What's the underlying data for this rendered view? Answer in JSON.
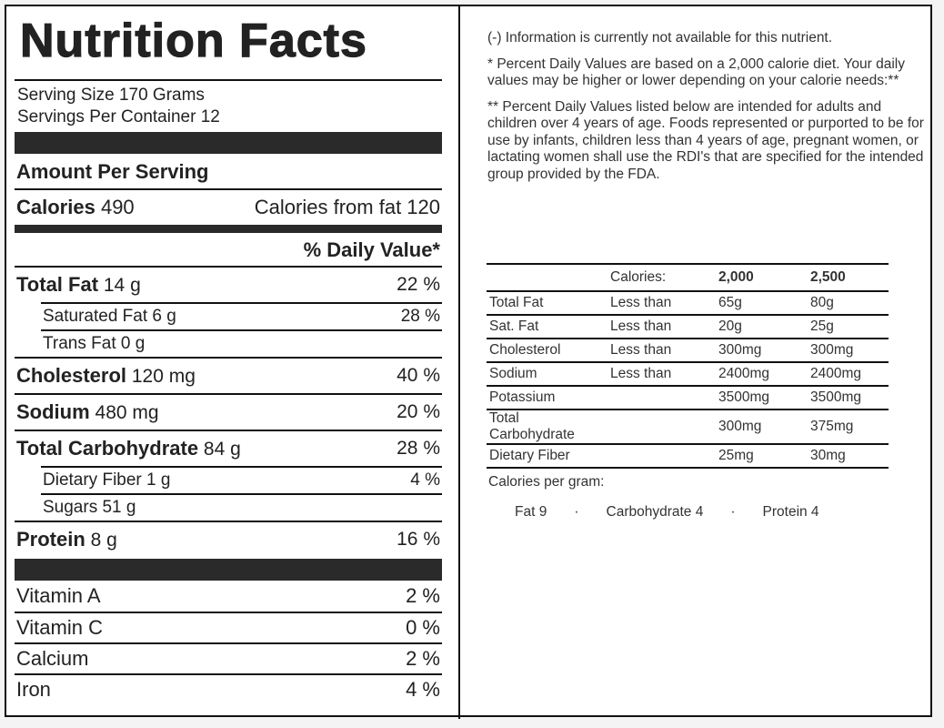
{
  "label": {
    "title": "Nutrition Facts",
    "serving_size": "Serving Size 170 Grams",
    "servings_per_container": "Servings Per Container 12",
    "amount_per_serving": "Amount Per Serving",
    "calories_label": "Calories",
    "calories_value": "490",
    "calories_from_fat": "Calories from fat 120",
    "daily_value_header": "% Daily Value*",
    "nutrients": [
      {
        "name": "Total Fat",
        "amount": "14 g",
        "dv": "22 %",
        "level": "main"
      },
      {
        "name": "Saturated Fat",
        "amount": "6 g",
        "dv": "28 %",
        "level": "sub"
      },
      {
        "name": "Trans Fat",
        "amount": "0 g",
        "dv": "",
        "level": "sub"
      },
      {
        "name": "Cholesterol",
        "amount": "120 mg",
        "dv": "40 %",
        "level": "main"
      },
      {
        "name": "Sodium",
        "amount": "480 mg",
        "dv": "20 %",
        "level": "main"
      },
      {
        "name": "Total Carbohydrate",
        "amount": "84 g",
        "dv": "28 %",
        "level": "main"
      },
      {
        "name": "Dietary Fiber",
        "amount": "1 g",
        "dv": "4 %",
        "level": "sub"
      },
      {
        "name": "Sugars",
        "amount": "51 g",
        "dv": "",
        "level": "sub"
      },
      {
        "name": "Protein",
        "amount": "8 g",
        "dv": "16 %",
        "level": "main"
      }
    ],
    "vitamins": [
      {
        "name": "Vitamin A",
        "dv": "2 %"
      },
      {
        "name": "Vitamin C",
        "dv": "0 %"
      },
      {
        "name": "Calcium",
        "dv": "2 %"
      },
      {
        "name": "Iron",
        "dv": "4 %"
      }
    ]
  },
  "notes": {
    "unavailable": "(-) Information is currently not available for this nutrient.",
    "percent_basis": "* Percent Daily Values are based on a 2,000 calorie diet. Your daily values may be higher or lower depending on your calorie needs:**",
    "intended_for": "** Percent Daily Values listed below are intended for adults and children over 4 years of age. Foods represented or purported to be for use by infants, children less than 4 years of age, pregnant women, or lactating women shall use the RDI's that are specified for the intended group provided by the FDA."
  },
  "dv_table": {
    "headers": [
      "",
      "Calories:",
      "2,000",
      "2,500"
    ],
    "rows": [
      [
        "Total Fat",
        "Less than",
        "65g",
        "80g"
      ],
      [
        "Sat. Fat",
        "Less than",
        "20g",
        "25g"
      ],
      [
        "Cholesterol",
        "Less than",
        "300mg",
        "300mg"
      ],
      [
        "Sodium",
        "Less than",
        "2400mg",
        "2400mg"
      ],
      [
        "Potassium",
        "",
        "3500mg",
        "3500mg"
      ],
      [
        "Total Carbohydrate",
        "",
        "300mg",
        "375mg"
      ],
      [
        "Dietary Fiber",
        "",
        "25mg",
        "30mg"
      ]
    ]
  },
  "calories_per_gram": {
    "label": "Calories per gram:",
    "items": [
      "Fat 9",
      "Carbohydrate 4",
      "Protein 4"
    ],
    "separator": "·"
  }
}
